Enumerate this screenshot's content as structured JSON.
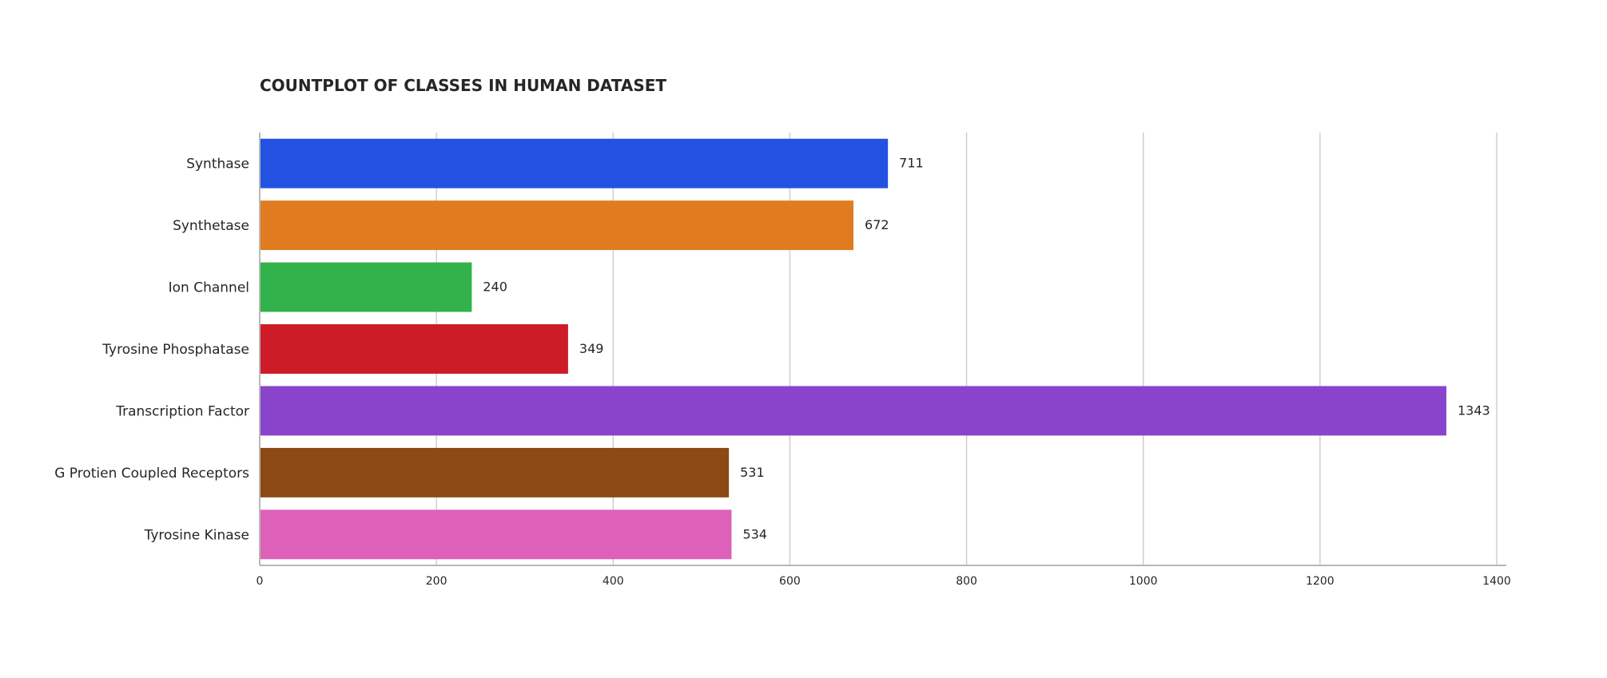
{
  "chart_data": {
    "type": "bar",
    "orientation": "horizontal",
    "title": "COUNTPLOT OF CLASSES IN HUMAN DATASET",
    "xlabel": "",
    "ylabel": "",
    "categories": [
      "Synthase",
      "Synthetase",
      "Ion Channel",
      "Tyrosine Phosphatase",
      "Transcription Factor",
      "G Protien Coupled Receptors",
      "Tyrosine Kinase"
    ],
    "values": [
      711,
      672,
      240,
      349,
      1343,
      531,
      534
    ],
    "data_labels": [
      "711",
      "672",
      "240",
      "349",
      "1343",
      "531",
      "534"
    ],
    "colors": [
      "#2352e3",
      "#e07c1f",
      "#31b24a",
      "#cc1c27",
      "#8a44cc",
      "#8b4914",
      "#dd61b9"
    ],
    "xlim": [
      0,
      1400
    ],
    "xticks": [
      0,
      200,
      400,
      600,
      800,
      1000,
      1200,
      1400
    ],
    "xtick_labels": [
      "0",
      "200",
      "400",
      "600",
      "800",
      "1000",
      "1200",
      "1400"
    ],
    "grid": "vertical",
    "legend": "none"
  }
}
